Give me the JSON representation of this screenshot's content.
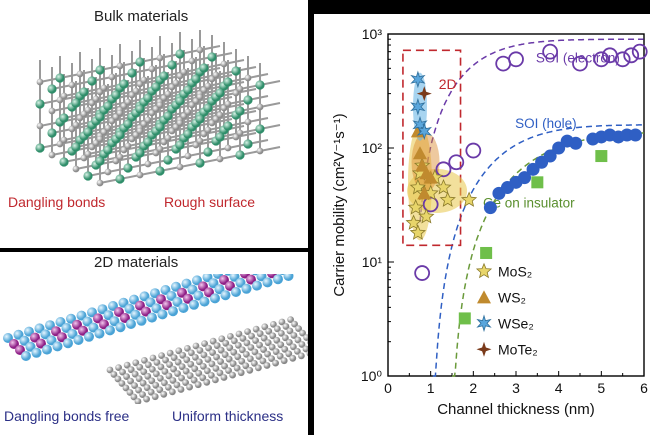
{
  "left_panels": {
    "bulk": {
      "title": "Bulk materials",
      "label_left": "Dangling bonds",
      "label_right": "Rough surface"
    },
    "twod": {
      "title": "2D materials",
      "label_left": "Dangling bonds free",
      "label_right": "Uniform thickness"
    }
  },
  "colors": {
    "red_label": "#c0282e",
    "navy_label": "#2b2f86",
    "soi_electron": "#6a3aa8",
    "soi_hole": "#2f5fc4",
    "ge": "#6fbf4a"
  },
  "chart_data": {
    "type": "scatter",
    "xlabel": "Channel thickness (nm)",
    "ylabel": "Carrier mobility (cm²V⁻¹s⁻¹)",
    "xlim": [
      0,
      6
    ],
    "ylim": [
      1,
      1000
    ],
    "yscale": "log",
    "xticks": [
      "0",
      "1",
      "2",
      "3",
      "4",
      "5",
      "6"
    ],
    "yticks": [
      "10⁰",
      "10¹",
      "10²",
      "10³"
    ],
    "box_label": "2D",
    "legend": [
      "MoS₂",
      "WS₂",
      "WSe₂",
      "MoTe₂"
    ],
    "series": [
      {
        "name": "SOI (electron)",
        "marker": "open-circle",
        "x": [
          0.8,
          1.0,
          1.3,
          1.6,
          2.0,
          2.7,
          3.0,
          3.8,
          4.5,
          5.0,
          5.2,
          5.5,
          5.7,
          5.9
        ],
        "y": [
          8,
          32,
          65,
          75,
          95,
          550,
          600,
          700,
          550,
          600,
          650,
          600,
          650,
          700
        ]
      },
      {
        "name": "SOI (hole)",
        "marker": "filled-circle",
        "x": [
          2.4,
          2.6,
          2.8,
          3.0,
          3.2,
          3.4,
          3.6,
          3.8,
          4.0,
          4.2,
          4.4,
          4.8,
          5.0,
          5.2,
          5.4,
          5.6,
          5.8
        ],
        "y": [
          30,
          40,
          45,
          50,
          55,
          65,
          75,
          85,
          100,
          115,
          110,
          120,
          125,
          130,
          125,
          130,
          130
        ]
      },
      {
        "name": "Ge on insulator",
        "marker": "square",
        "x": [
          1.8,
          2.3,
          3.5,
          5.0
        ],
        "y": [
          3.2,
          12,
          50,
          85
        ]
      },
      {
        "name": "MoS₂",
        "marker": "star",
        "x": [
          0.6,
          0.65,
          0.7,
          0.75,
          0.8,
          0.85,
          0.7,
          0.9,
          1.0,
          1.1,
          1.3,
          1.4,
          1.9
        ],
        "y": [
          22,
          30,
          45,
          60,
          70,
          40,
          18,
          25,
          40,
          55,
          45,
          35,
          35
        ]
      },
      {
        "name": "WS₂",
        "marker": "triangle",
        "x": [
          0.7,
          0.75,
          0.8,
          0.9,
          1.0,
          0.85
        ],
        "y": [
          140,
          90,
          70,
          60,
          55,
          40
        ]
      },
      {
        "name": "WSe₂",
        "marker": "asterisk",
        "x": [
          0.7,
          0.7,
          0.75,
          0.85
        ],
        "y": [
          400,
          230,
          160,
          140
        ]
      },
      {
        "name": "MoTe₂",
        "marker": "four-point-star",
        "x": [
          0.85
        ],
        "y": [
          300
        ]
      }
    ],
    "curve_labels": [
      "SOI (electron)",
      "SOI (hole)",
      "Ge on insulator"
    ]
  }
}
